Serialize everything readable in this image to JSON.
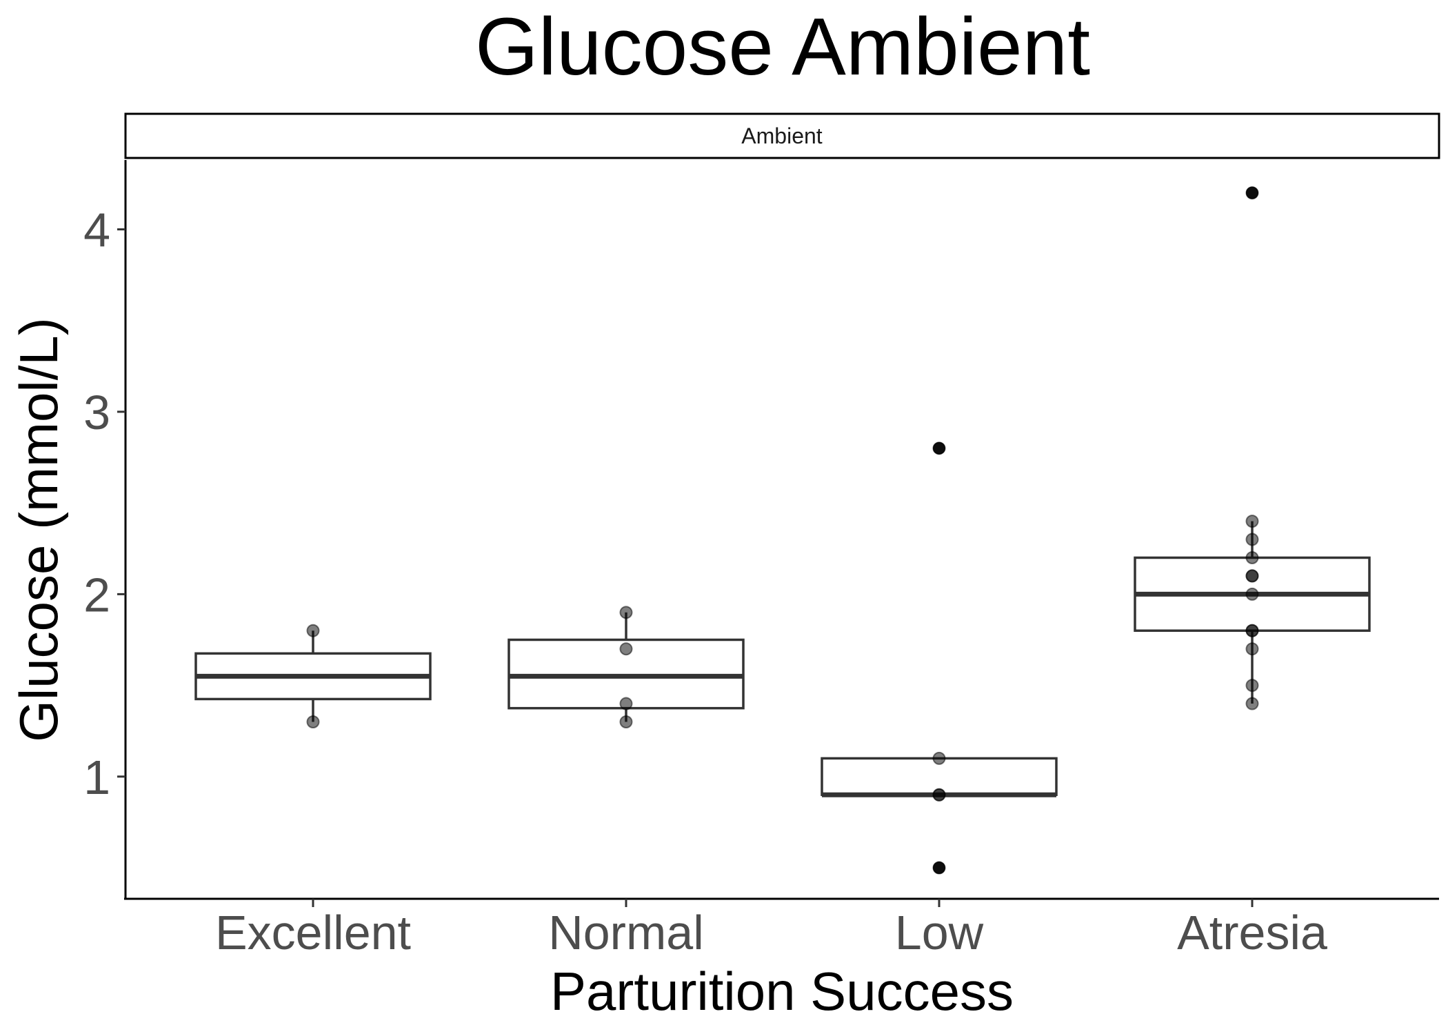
{
  "chart_data": {
    "type": "box",
    "title": "Glucose Ambient",
    "facet_label": "Ambient",
    "xlabel": "Parturition Success",
    "ylabel": "Glucose (mmol/L)",
    "categories": [
      "Excellent",
      "Normal",
      "Low",
      "Atresia"
    ],
    "ylim": [
      0.33,
      4.38
    ],
    "yticks": [
      1,
      2,
      3,
      4
    ],
    "grid": false,
    "boxes": [
      {
        "category": "Excellent",
        "whisker_low": 1.3,
        "q1": 1.425,
        "median": 1.55,
        "q3": 1.675,
        "whisker_high": 1.8,
        "outliers": []
      },
      {
        "category": "Normal",
        "whisker_low": 1.3,
        "q1": 1.375,
        "median": 1.55,
        "q3": 1.75,
        "whisker_high": 1.9,
        "outliers": []
      },
      {
        "category": "Low",
        "whisker_low": 0.9,
        "q1": 0.9,
        "median": 0.9,
        "q3": 1.1,
        "whisker_high": 1.1,
        "outliers": [
          2.8,
          0.5
        ]
      },
      {
        "category": "Atresia",
        "whisker_low": 1.4,
        "q1": 1.8,
        "median": 2.0,
        "q3": 2.2,
        "whisker_high": 2.4,
        "outliers": [
          4.2
        ]
      }
    ],
    "points": [
      {
        "category": "Excellent",
        "values": [
          1.8,
          1.3
        ]
      },
      {
        "category": "Normal",
        "values": [
          1.9,
          1.7,
          1.4,
          1.3
        ]
      },
      {
        "category": "Low",
        "values": [
          2.8,
          1.1,
          0.9,
          0.9,
          0.5
        ]
      },
      {
        "category": "Atresia",
        "values": [
          4.2,
          2.4,
          2.3,
          2.2,
          2.1,
          2.1,
          2.0,
          1.8,
          1.8,
          1.7,
          1.5,
          1.4
        ]
      }
    ],
    "colors": {
      "box_stroke": "#333333",
      "point_fill": "#000000",
      "tick_text": "#4d4d4d"
    }
  }
}
